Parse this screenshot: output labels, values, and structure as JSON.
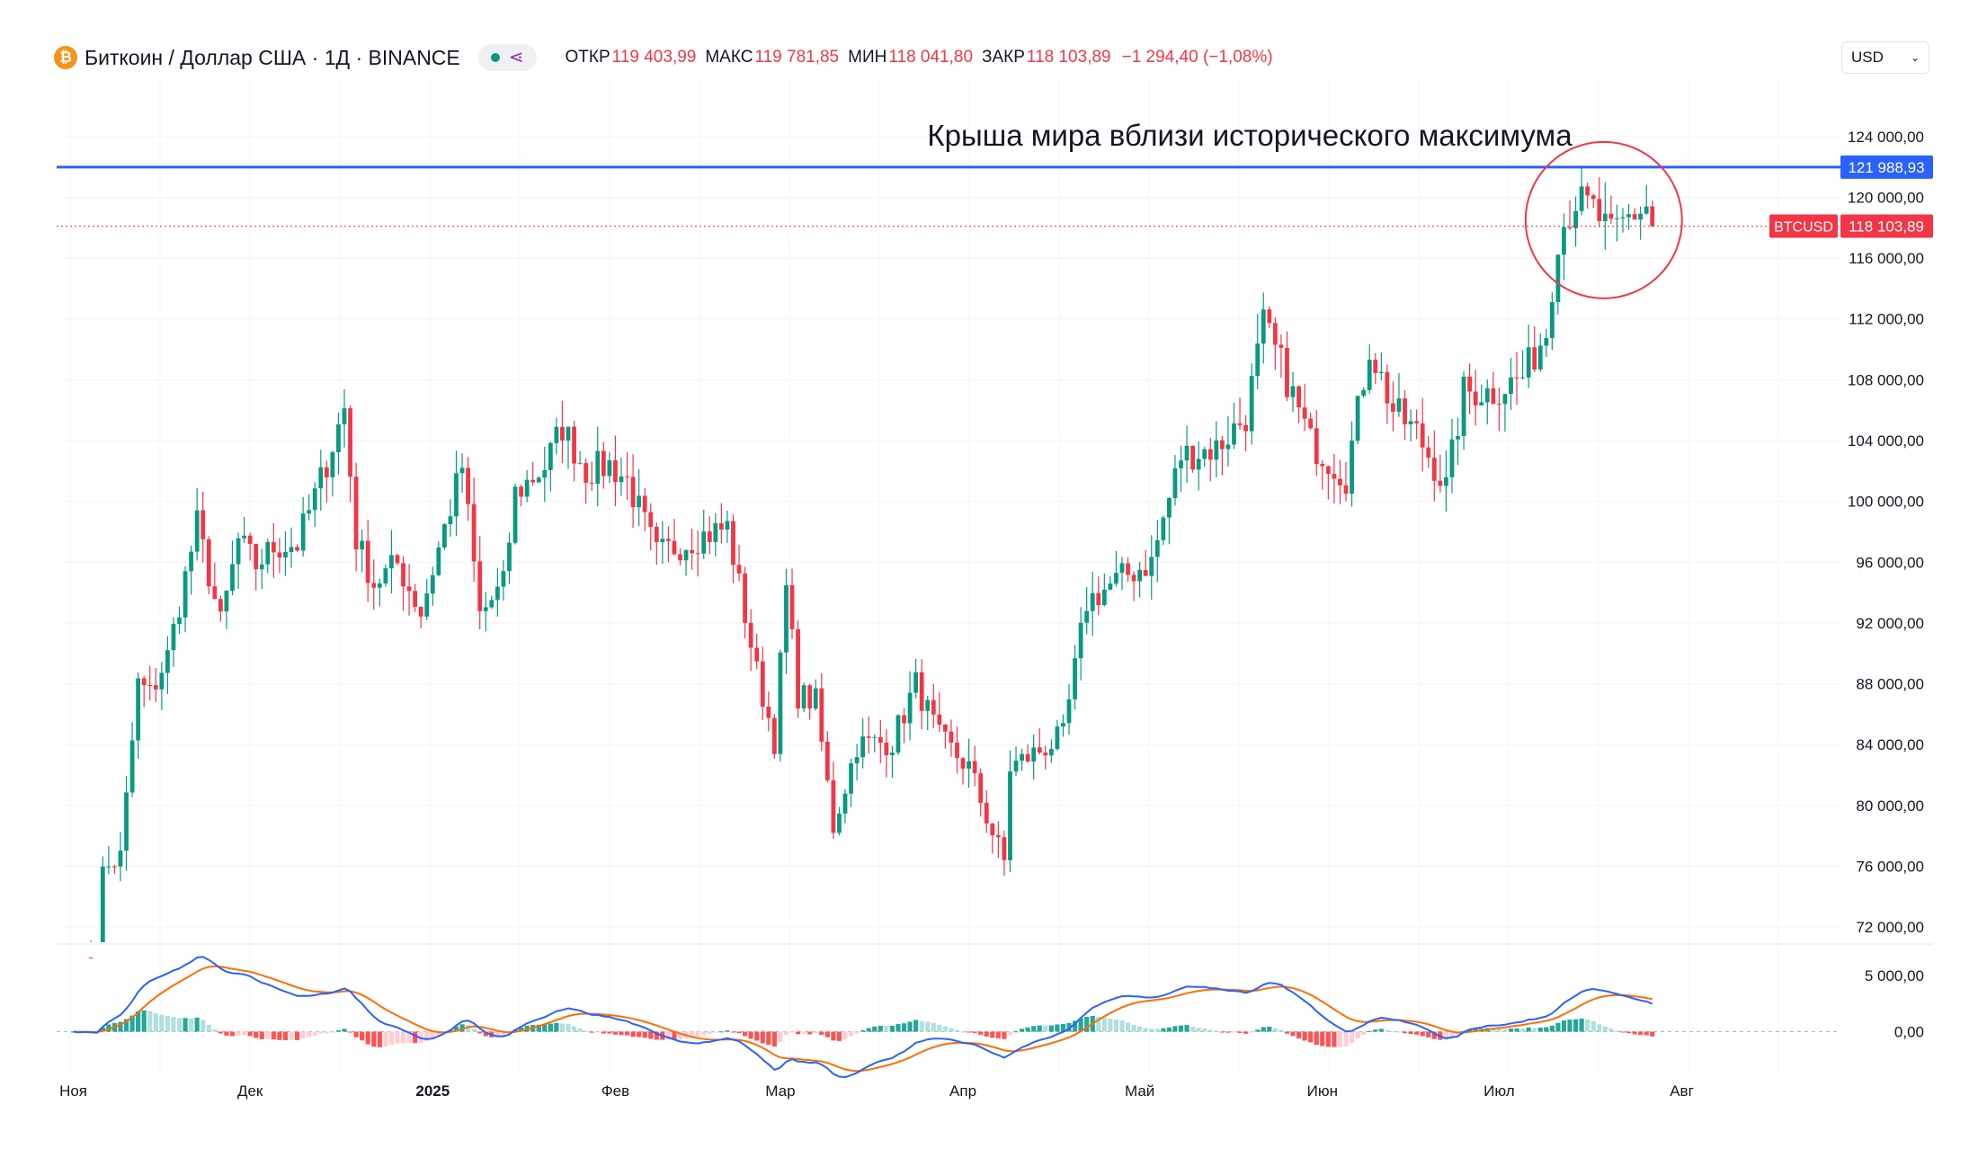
{
  "header": {
    "symbol": "Биткоин",
    "title": "Биткоин / Доллар США · 1Д · BINANCE",
    "ohlc": {
      "open_label": "ОТКР",
      "open": "119 403,99",
      "high_label": "МАКС",
      "high": "119 781,85",
      "low_label": "МИН",
      "low": "118 041,80",
      "close_label": "ЗАКР",
      "close": "118 103,89",
      "change": "−1 294,40 (−1,08%)"
    }
  },
  "currency_select": {
    "value": "USD"
  },
  "icons": {
    "coin": "bitcoin-icon",
    "status": "status-dot-icon",
    "share": "share-icon",
    "dropdown": "chevron-down-icon"
  },
  "colors": {
    "up": "#089981",
    "down": "#f23645",
    "level_line": "#2962ff",
    "macd": "#2962ff",
    "signal": "#ff6d00",
    "circle": "#f23645"
  },
  "chart_data": [
    {
      "type": "candlestick",
      "title": "",
      "annotation": "Крыша мира вблизи исторического максимума",
      "x_tick_labels": [
        "Ноя",
        "Дек",
        "2025",
        "Фев",
        "Мар",
        "Апр",
        "Май",
        "Июн",
        "Июл",
        "Авг"
      ],
      "y_tick_labels": [
        "124 000,00",
        "120 000,00",
        "116 000,00",
        "112 000,00",
        "108 000,00",
        "104 000,00",
        "100 000,00",
        "96 000,00",
        "92 000,00",
        "88 000,00",
        "84 000,00",
        "80 000,00",
        "76 000,00",
        "72 000,00"
      ],
      "ylim": [
        71000,
        126000
      ],
      "horizontal_level": {
        "value": 121988.93,
        "label": "121 988,93"
      },
      "last_price": {
        "value": 118103.89,
        "symbol": "BTCUSD",
        "label": "118 103,89"
      },
      "anchors": [
        {
          "date": "2024-11-01",
          "close": 69500
        },
        {
          "date": "2024-11-05",
          "close": 69200
        },
        {
          "date": "2024-11-06",
          "close": 75600
        },
        {
          "date": "2024-11-09",
          "close": 76600
        },
        {
          "date": "2024-11-12",
          "close": 88000
        },
        {
          "date": "2024-11-14",
          "close": 87300
        },
        {
          "date": "2024-11-17",
          "close": 89800
        },
        {
          "date": "2024-11-22",
          "close": 98500
        },
        {
          "date": "2024-11-26",
          "close": 91900
        },
        {
          "date": "2024-11-29",
          "close": 97400
        },
        {
          "date": "2024-12-02",
          "close": 95800
        },
        {
          "date": "2024-12-05",
          "close": 97000
        },
        {
          "date": "2024-12-09",
          "close": 97200
        },
        {
          "date": "2024-12-13",
          "close": 101400
        },
        {
          "date": "2024-12-17",
          "close": 106100
        },
        {
          "date": "2024-12-19",
          "close": 97500
        },
        {
          "date": "2024-12-22",
          "close": 94600
        },
        {
          "date": "2024-12-26",
          "close": 95900
        },
        {
          "date": "2024-12-30",
          "close": 92700
        },
        {
          "date": "2025-01-02",
          "close": 96900
        },
        {
          "date": "2025-01-06",
          "close": 102300
        },
        {
          "date": "2025-01-09",
          "close": 92500
        },
        {
          "date": "2025-01-13",
          "close": 94500
        },
        {
          "date": "2025-01-15",
          "close": 100500
        },
        {
          "date": "2025-01-20",
          "close": 102300
        },
        {
          "date": "2025-01-23",
          "close": 104900
        },
        {
          "date": "2025-01-27",
          "close": 102000
        },
        {
          "date": "2025-01-31",
          "close": 102400
        },
        {
          "date": "2025-02-03",
          "close": 101400
        },
        {
          "date": "2025-02-08",
          "close": 96500
        },
        {
          "date": "2025-02-14",
          "close": 97500
        },
        {
          "date": "2025-02-20",
          "close": 98300
        },
        {
          "date": "2025-02-25",
          "close": 88700
        },
        {
          "date": "2025-02-28",
          "close": 84300
        },
        {
          "date": "2025-03-02",
          "close": 94200
        },
        {
          "date": "2025-03-04",
          "close": 87300
        },
        {
          "date": "2025-03-07",
          "close": 86800
        },
        {
          "date": "2025-03-10",
          "close": 78600
        },
        {
          "date": "2025-03-14",
          "close": 84000
        },
        {
          "date": "2025-03-20",
          "close": 84200
        },
        {
          "date": "2025-03-24",
          "close": 88000
        },
        {
          "date": "2025-03-28",
          "close": 84400
        },
        {
          "date": "2025-04-02",
          "close": 82500
        },
        {
          "date": "2025-04-06",
          "close": 78200
        },
        {
          "date": "2025-04-08",
          "close": 76300
        },
        {
          "date": "2025-04-09",
          "close": 82500
        },
        {
          "date": "2025-04-13",
          "close": 83400
        },
        {
          "date": "2025-04-18",
          "close": 84500
        },
        {
          "date": "2025-04-22",
          "close": 93400
        },
        {
          "date": "2025-04-28",
          "close": 95000
        },
        {
          "date": "2025-05-03",
          "close": 96000
        },
        {
          "date": "2025-05-08",
          "close": 103000
        },
        {
          "date": "2025-05-14",
          "close": 103500
        },
        {
          "date": "2025-05-19",
          "close": 105600
        },
        {
          "date": "2025-05-22",
          "close": 111600
        },
        {
          "date": "2025-05-25",
          "close": 109000
        },
        {
          "date": "2025-05-30",
          "close": 103900
        },
        {
          "date": "2025-06-05",
          "close": 101600
        },
        {
          "date": "2025-06-09",
          "close": 110200
        },
        {
          "date": "2025-06-13",
          "close": 106000
        },
        {
          "date": "2025-06-17",
          "close": 104500
        },
        {
          "date": "2025-06-22",
          "close": 100900
        },
        {
          "date": "2025-06-25",
          "close": 107200
        },
        {
          "date": "2025-06-30",
          "close": 107200
        },
        {
          "date": "2025-07-05",
          "close": 108200
        },
        {
          "date": "2025-07-09",
          "close": 111200
        },
        {
          "date": "2025-07-11",
          "close": 117500
        },
        {
          "date": "2025-07-14",
          "close": 119800
        },
        {
          "date": "2025-07-17",
          "close": 119200
        },
        {
          "date": "2025-07-20",
          "close": 117400
        },
        {
          "date": "2025-07-23",
          "close": 118700
        },
        {
          "date": "2025-07-26",
          "close": 119400
        },
        {
          "date": "2025-07-27",
          "close": 118103.89
        }
      ],
      "last_candle": {
        "open": 119403.99,
        "high": 119781.85,
        "low": 118041.8,
        "close": 118103.89
      }
    },
    {
      "type": "macd",
      "y_tick_labels": [
        "5 000,00",
        "0,00"
      ],
      "ylim": [
        -3800,
        7800
      ],
      "series": [
        {
          "role": "macd-line",
          "color": "#2962ff"
        },
        {
          "role": "signal-line",
          "color": "#ff6d00"
        },
        {
          "role": "histogram"
        }
      ]
    }
  ]
}
